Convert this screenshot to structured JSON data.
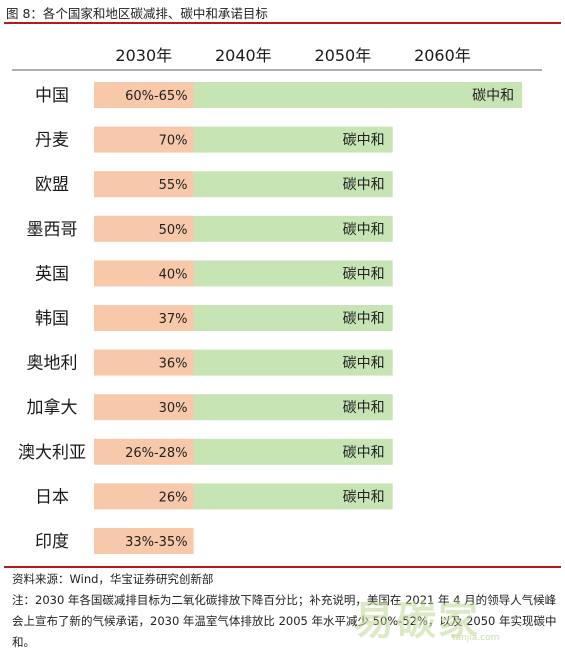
{
  "header": {
    "figure_title": "图 8：各个国家和地区碳减排、碳中和承诺目标"
  },
  "colors": {
    "rule": "#b31b1b",
    "reduction_bar": "#f8c8aa",
    "neutral_bar": "#c6e4b4",
    "axis_line": "#7f7f7f"
  },
  "chart_data": {
    "type": "bar",
    "orientation": "horizontal",
    "x_ticks": [
      "2030年",
      "2040年",
      "2050年",
      "2060年"
    ],
    "xlim": [
      2020,
      2065
    ],
    "categories": [
      "中国",
      "丹麦",
      "欧盟",
      "墨西哥",
      "英国",
      "韩国",
      "奥地利",
      "加拿大",
      "澳大利亚",
      "日本",
      "印度"
    ],
    "series": [
      {
        "values": [
          2030,
          2030,
          2030,
          2030,
          2030,
          2030,
          2030,
          2030,
          2030,
          2030,
          2030
        ],
        "labels": [
          "60%-65%",
          "70%",
          "55%",
          "50%",
          "40%",
          "37%",
          "36%",
          "30%",
          "26%-28%",
          "26%",
          "33%-35%"
        ]
      },
      {
        "values": [
          2063,
          2050,
          2050,
          2050,
          2050,
          2050,
          2050,
          2050,
          2050,
          2050,
          null
        ],
        "labels": [
          "碳中和",
          "碳中和",
          "碳中和",
          "碳中和",
          "碳中和",
          "碳中和",
          "碳中和",
          "碳中和",
          "碳中和",
          "碳中和",
          ""
        ]
      }
    ]
  },
  "footer": {
    "source": "资料来源：Wind，华宝证券研究创新部",
    "note": "注：2030 年各国碳减排目标为二氧化碳排放下降百分比；补充说明，美国在 2021 年 4 月的领导人气候峰会上宣布了新的气候承诺，2030 年温室气体排放比 2005 年水平减少 50%-52%，以及 2050 年实现碳中和。"
  },
  "watermark": {
    "text": "易碳家",
    "subtext": "tanjia.com"
  }
}
